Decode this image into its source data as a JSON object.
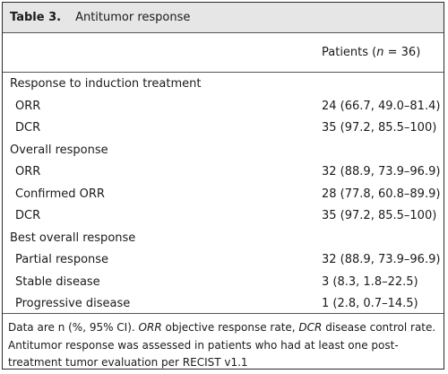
{
  "table": {
    "number": "Table 3.",
    "title": "Antitumor response",
    "column_header_prefix": "Patients (",
    "column_header_var": "n",
    "column_header_suffix": " = 36)",
    "rows": [
      {
        "type": "section",
        "label": "Response to induction treatment",
        "value": ""
      },
      {
        "type": "item",
        "label": "ORR",
        "value": "24 (66.7, 49.0–81.4)"
      },
      {
        "type": "item",
        "label": "DCR",
        "value": "35 (97.2, 85.5–100)"
      },
      {
        "type": "section",
        "label": "Overall response",
        "value": ""
      },
      {
        "type": "item",
        "label": "ORR",
        "value": "32 (88.9, 73.9–96.9)"
      },
      {
        "type": "item",
        "label": "Confirmed ORR",
        "value": "28 (77.8, 60.8–89.9)"
      },
      {
        "type": "item",
        "label": "DCR",
        "value": "35 (97.2, 85.5–100)"
      },
      {
        "type": "section",
        "label": "Best overall response",
        "value": ""
      },
      {
        "type": "item",
        "label": "Partial response",
        "value": "32 (88.9, 73.9–96.9)"
      },
      {
        "type": "item",
        "label": "Stable disease",
        "value": "3 (8.3, 1.8–22.5)"
      },
      {
        "type": "item",
        "label": "Progressive disease",
        "value": "1 (2.8, 0.7–14.5)"
      }
    ],
    "footnote": {
      "part1": "Data are n (%, 95% CI). ",
      "abbr1": "ORR",
      "part2": " objective response rate, ",
      "abbr2": "DCR",
      "part3": " disease control rate. Antitumor response was assessed in patients who had at least one post-treatment tumor evaluation per RECIST v1.1"
    }
  }
}
